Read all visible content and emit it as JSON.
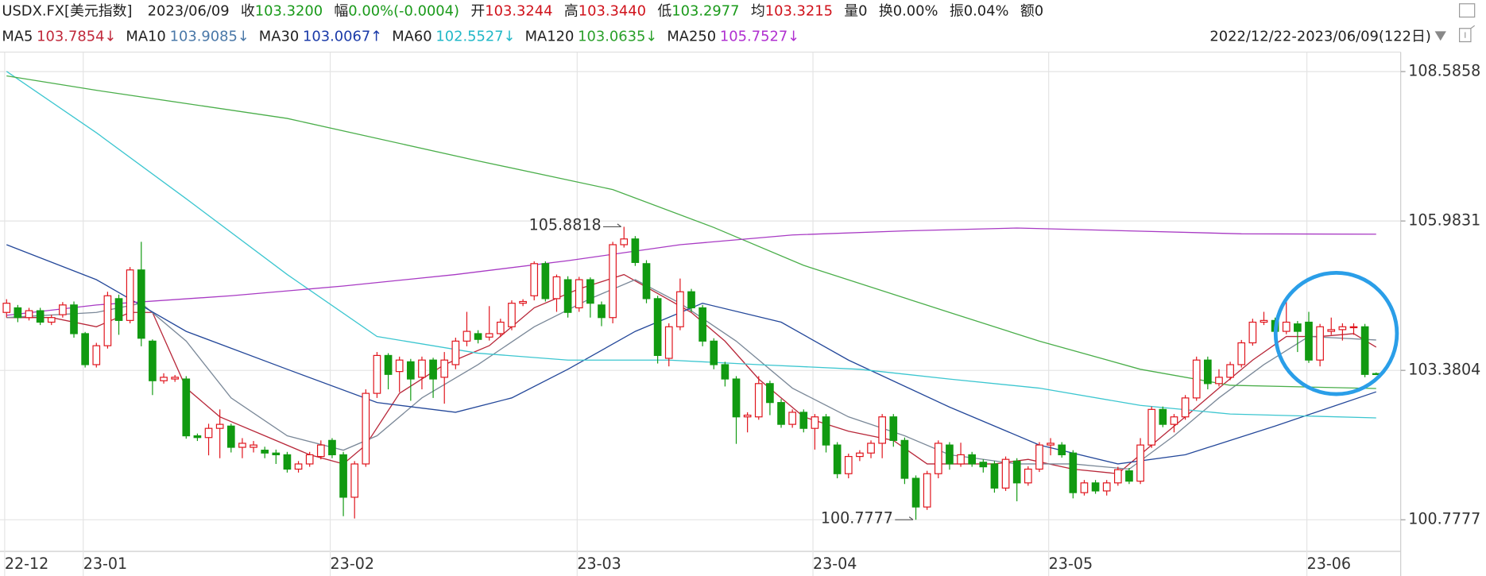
{
  "chart_data": {
    "type": "candlestick",
    "title": "USDX.FX[美元指数]",
    "date": "2023/06/09",
    "header_items": [
      {
        "label": "收",
        "value": "103.3200",
        "color": "#1a9a1a"
      },
      {
        "label": "幅",
        "value": "0.00%(-0.0004)",
        "color": "#1a9a1a"
      },
      {
        "label": "开",
        "value": "103.3244",
        "color": "#d0121b"
      },
      {
        "label": "高",
        "value": "103.3440",
        "color": "#d0121b"
      },
      {
        "label": "低",
        "value": "103.2977",
        "color": "#1a9a1a"
      },
      {
        "label": "均",
        "value": "103.3215",
        "color": "#d0121b"
      },
      {
        "label": "量",
        "value": "0",
        "color": "#222222"
      },
      {
        "label": "换",
        "value": "0.00%",
        "color": "#222222"
      },
      {
        "label": "振",
        "value": "0.04%",
        "color": "#222222"
      },
      {
        "label": "额",
        "value": "0",
        "color": "#222222"
      }
    ],
    "range_label": "2022/12/22-2023/06/09(122日)",
    "up_color": "#e0141c",
    "down_color": "#119a11",
    "ylim": [
      100.26,
      108.76
    ],
    "yticks": [
      108.5858,
      105.9831,
      103.3804,
      100.7777
    ],
    "grid": true,
    "xticks": [
      {
        "value": 0,
        "label": "22-12"
      },
      {
        "value": 7,
        "label": "23-01"
      },
      {
        "value": 29,
        "label": "23-02"
      },
      {
        "value": 51,
        "label": "23-03"
      },
      {
        "value": 72,
        "label": "23-04"
      },
      {
        "value": 93,
        "label": "23-05"
      },
      {
        "value": 116,
        "label": "23-06"
      }
    ],
    "candles": {
      "open": [
        104.39,
        104.47,
        104.3,
        104.42,
        104.22,
        104.35,
        104.52,
        104.02,
        103.48,
        103.81,
        104.63,
        104.25,
        105.13,
        103.89,
        103.2,
        103.23,
        103.23,
        102.24,
        102.21,
        102.37,
        102.41,
        102.04,
        102.04,
        101.99,
        101.94,
        101.91,
        101.66,
        101.75,
        101.88,
        102.16,
        101.91,
        101.17,
        101.75,
        102.98,
        103.64,
        103.36,
        103.53,
        103.26,
        103.56,
        103.26,
        103.48,
        103.89,
        104.02,
        103.96,
        104.02,
        104.14,
        104.55,
        104.68,
        105.24,
        104.63,
        104.96,
        104.47,
        104.96,
        104.52,
        104.3,
        105.57,
        105.67,
        105.24,
        104.63,
        103.59,
        104.14,
        104.75,
        104.47,
        103.89,
        103.48,
        103.23,
        102.57,
        102.57,
        103.15,
        102.82,
        102.44,
        102.65,
        102.37,
        102.57,
        102.08,
        101.58,
        101.88,
        101.94,
        102.11,
        102.57,
        102.16,
        101.5,
        101.0,
        101.58,
        102.08,
        101.75,
        101.91,
        101.78,
        101.75,
        101.33,
        101.8,
        101.42,
        101.66,
        102.08,
        102.08,
        101.94,
        101.25,
        101.42,
        101.28,
        101.42,
        101.63,
        101.45,
        102.08,
        102.7,
        102.44,
        102.57,
        102.9,
        103.56,
        103.15,
        103.26,
        103.48,
        103.86,
        104.22,
        104.25,
        104.06,
        104.19,
        104.22,
        103.56,
        104.06,
        104.09,
        104.14,
        104.14,
        103.3244
      ],
      "high": [
        104.62,
        104.52,
        104.47,
        104.47,
        104.35,
        104.57,
        104.58,
        104.05,
        103.86,
        104.75,
        104.7,
        105.18,
        105.62,
        103.92,
        103.33,
        103.3,
        103.28,
        102.28,
        102.45,
        102.7,
        102.45,
        102.2,
        102.15,
        102.05,
        102.0,
        101.96,
        101.8,
        101.96,
        102.16,
        102.2,
        101.96,
        101.8,
        103.05,
        103.7,
        103.68,
        103.62,
        103.58,
        103.62,
        103.6,
        103.7,
        103.95,
        104.4,
        104.08,
        104.5,
        104.28,
        104.6,
        104.62,
        105.28,
        105.28,
        105.05,
        105.02,
        105.01,
        105.0,
        104.58,
        105.62,
        105.8818,
        105.72,
        105.3,
        104.68,
        104.2,
        104.98,
        104.8,
        104.52,
        103.94,
        103.53,
        103.28,
        102.65,
        103.28,
        103.2,
        102.88,
        102.7,
        102.7,
        102.62,
        102.62,
        102.13,
        101.93,
        101.99,
        102.16,
        102.62,
        102.62,
        102.21,
        101.55,
        101.63,
        102.16,
        102.13,
        102.12,
        101.96,
        101.83,
        101.8,
        101.88,
        101.85,
        101.71,
        102.13,
        102.2,
        102.13,
        101.99,
        101.47,
        101.47,
        101.47,
        101.7,
        101.68,
        102.2,
        102.75,
        102.75,
        102.62,
        102.95,
        103.62,
        103.62,
        103.4,
        103.53,
        103.91,
        104.28,
        104.4,
        104.3,
        104.62,
        104.24,
        104.4,
        104.19,
        104.3,
        104.2,
        104.2,
        104.19,
        103.344
      ],
      "low": [
        104.3,
        104.22,
        104.25,
        104.17,
        104.17,
        104.3,
        103.95,
        103.43,
        103.43,
        103.76,
        104.0,
        104.2,
        103.8,
        102.95,
        103.15,
        103.18,
        102.19,
        102.15,
        101.9,
        101.85,
        101.95,
        101.85,
        101.95,
        101.85,
        101.75,
        101.6,
        101.6,
        101.7,
        101.83,
        101.85,
        100.84,
        100.8,
        101.7,
        102.9,
        103.05,
        103.0,
        102.85,
        103.05,
        102.9,
        102.8,
        103.4,
        103.8,
        103.85,
        103.9,
        103.96,
        104.08,
        104.5,
        104.6,
        104.58,
        104.4,
        104.3,
        104.4,
        104.3,
        104.15,
        104.2,
        105.52,
        105.2,
        104.55,
        103.5,
        103.45,
        104.08,
        104.4,
        103.8,
        103.4,
        103.1,
        102.1,
        102.3,
        102.52,
        102.6,
        102.38,
        102.38,
        102.3,
        102.0,
        101.95,
        101.5,
        101.5,
        101.8,
        101.85,
        101.85,
        102.05,
        101.4,
        100.7777,
        100.95,
        101.5,
        101.65,
        101.7,
        101.7,
        101.6,
        101.25,
        101.28,
        101.1,
        101.37,
        101.61,
        101.9,
        101.86,
        101.15,
        101.2,
        101.23,
        101.2,
        101.37,
        101.4,
        101.4,
        102.03,
        102.39,
        102.3,
        102.52,
        102.85,
        103.05,
        103.1,
        103.21,
        103.43,
        103.81,
        104.17,
        104.0,
        104.01,
        103.7,
        103.51,
        103.45,
        104.0,
        103.9,
        104.0,
        103.26,
        103.2977
      ],
      "close": [
        104.55,
        104.3,
        104.42,
        104.22,
        104.3,
        104.52,
        104.02,
        103.48,
        103.81,
        104.68,
        104.25,
        105.13,
        103.94,
        103.2,
        103.26,
        103.26,
        102.24,
        102.21,
        102.37,
        102.44,
        102.04,
        102.11,
        102.08,
        101.94,
        101.91,
        101.66,
        101.75,
        101.91,
        102.08,
        101.91,
        101.17,
        101.75,
        102.98,
        103.64,
        103.31,
        103.56,
        103.23,
        103.56,
        103.23,
        103.56,
        103.89,
        104.06,
        103.92,
        104.02,
        104.22,
        104.55,
        104.58,
        105.24,
        104.63,
        105.01,
        104.39,
        104.96,
        104.55,
        104.3,
        105.57,
        105.67,
        105.26,
        104.63,
        103.64,
        104.14,
        104.75,
        104.47,
        103.89,
        103.48,
        103.23,
        102.57,
        102.6,
        103.15,
        102.82,
        102.44,
        102.65,
        102.37,
        102.57,
        102.08,
        101.58,
        101.88,
        101.94,
        102.11,
        102.57,
        102.16,
        101.5,
        101.0,
        101.58,
        102.11,
        101.75,
        101.91,
        101.75,
        101.7,
        101.33,
        101.83,
        101.42,
        101.66,
        102.08,
        102.11,
        101.91,
        101.25,
        101.42,
        101.28,
        101.42,
        101.65,
        101.45,
        102.08,
        102.7,
        102.44,
        102.57,
        102.9,
        103.56,
        103.15,
        103.26,
        103.48,
        103.86,
        104.22,
        104.25,
        104.06,
        104.22,
        104.06,
        103.56,
        104.14,
        104.09,
        104.14,
        104.14,
        103.31,
        103.32
      ]
    },
    "extremes": [
      {
        "index": 55,
        "field": "high"
      },
      {
        "index": 81,
        "field": "low"
      }
    ],
    "series": [
      {
        "name": "MA5",
        "legend_label": "103.7854↓",
        "color": "#b8283a",
        "label_color": "#c0283a",
        "x": [
          0,
          4,
          8,
          11,
          13,
          16,
          19,
          23,
          27,
          30,
          32,
          35,
          39,
          43,
          47,
          51,
          55,
          58,
          61,
          64,
          67,
          71,
          75,
          79,
          82,
          85,
          88,
          91,
          95,
          99,
          102,
          105,
          108,
          111,
          114,
          117,
          120,
          122
        ],
        "values": [
          104.3,
          104.3,
          104.14,
          104.39,
          104.39,
          103.07,
          102.57,
          102.24,
          101.91,
          101.75,
          102.08,
          102.98,
          103.48,
          103.81,
          104.47,
          104.8,
          105.05,
          104.72,
          104.39,
          103.89,
          103.23,
          102.57,
          102.32,
          102.16,
          101.75,
          101.75,
          101.75,
          101.83,
          101.66,
          101.58,
          102.08,
          102.57,
          103.07,
          103.56,
          103.97,
          103.97,
          104.02,
          103.7854
        ]
      },
      {
        "name": "MA10",
        "legend_label": "103.9085↓",
        "color": "#7a8898",
        "label_color": "#4a78a8",
        "x": [
          0,
          8,
          12,
          16,
          20,
          25,
          30,
          33,
          37,
          42,
          47,
          52,
          56,
          60,
          65,
          70,
          75,
          80,
          84,
          90,
          95,
          100,
          104,
          108,
          112,
          116,
          122
        ],
        "values": [
          104.3,
          104.39,
          104.55,
          103.89,
          102.9,
          102.24,
          101.99,
          102.24,
          102.9,
          103.48,
          104.14,
          104.63,
          104.96,
          104.55,
          103.89,
          103.07,
          102.57,
          102.24,
          101.91,
          101.75,
          101.75,
          101.66,
          102.24,
          102.9,
          103.48,
          103.97,
          103.9085
        ]
      },
      {
        "name": "MA30",
        "legend_label": "103.0067↑",
        "color": "#24489a",
        "label_color": "#1a3aa8",
        "x": [
          0,
          8,
          16,
          25,
          33,
          40,
          45,
          50,
          56,
          62,
          69,
          75,
          84,
          92,
          99,
          105,
          113,
          122
        ],
        "values": [
          105.57,
          104.96,
          104.06,
          103.4,
          102.82,
          102.65,
          102.9,
          103.4,
          104.06,
          104.55,
          104.22,
          103.56,
          102.74,
          102.08,
          101.75,
          101.91,
          102.41,
          103.0067
        ]
      },
      {
        "name": "MA60",
        "legend_label": "102.5527↓",
        "color": "#3cc6d0",
        "label_color": "#22b8c8",
        "x": [
          0,
          8,
          16,
          25,
          33,
          42,
          50,
          59,
          67,
          76,
          84,
          92,
          101,
          109,
          122
        ],
        "values": [
          108.59,
          107.52,
          106.37,
          105.05,
          103.97,
          103.68,
          103.56,
          103.56,
          103.48,
          103.4,
          103.23,
          103.07,
          102.77,
          102.62,
          102.5527
        ]
      },
      {
        "name": "MA120",
        "legend_label": "103.0635↓",
        "color": "#4aae4a",
        "label_color": "#2aa02a",
        "x": [
          0,
          8,
          25,
          42,
          54,
          63,
          71,
          84,
          92,
          101,
          109,
          122
        ],
        "values": [
          108.51,
          108.26,
          107.77,
          107.03,
          106.53,
          105.87,
          105.21,
          104.39,
          103.89,
          103.4,
          103.12,
          103.0635
        ]
      },
      {
        "name": "MA250",
        "legend_label": "105.7527↓",
        "color": "#a83ac4",
        "label_color": "#b030d0",
        "x": [
          0,
          8,
          20,
          30,
          40,
          50,
          60,
          70,
          80,
          90,
          100,
          110,
          122
        ],
        "values": [
          104.34,
          104.52,
          104.68,
          104.85,
          105.05,
          105.29,
          105.57,
          105.74,
          105.81,
          105.86,
          105.81,
          105.76,
          105.7527
        ]
      }
    ]
  }
}
